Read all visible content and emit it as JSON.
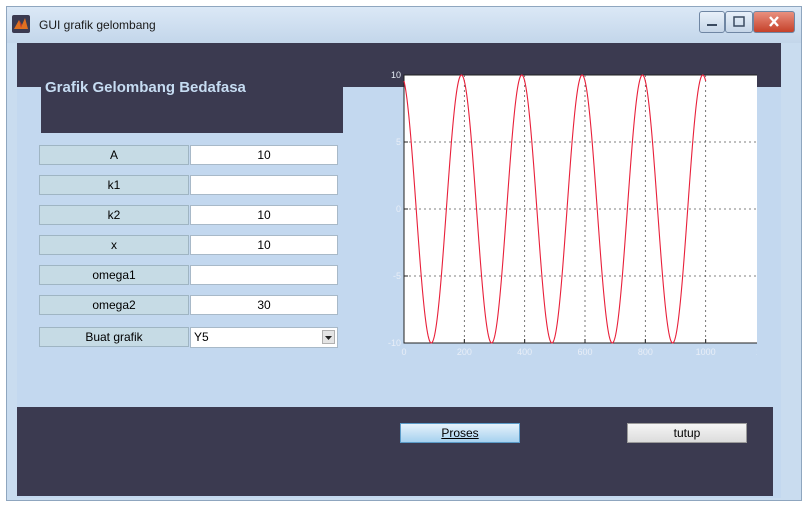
{
  "window": {
    "title": "GUI grafik gelombang",
    "accent_dark": "#3b3a50",
    "background": "#c3d8ef"
  },
  "panel": {
    "heading": "Grafik Gelombang Bedafasa"
  },
  "fields": [
    {
      "label": "A",
      "value": "10"
    },
    {
      "label": "k1",
      "value": ""
    },
    {
      "label": "k2",
      "value": "10"
    },
    {
      "label": "x",
      "value": "10"
    },
    {
      "label": "omega1",
      "value": ""
    },
    {
      "label": "omega2",
      "value": "30"
    }
  ],
  "buat_grafik": {
    "label": "Buat grafik",
    "selected": "Y5"
  },
  "buttons": {
    "proses": "Proses",
    "tutup": "tutup"
  },
  "chart_data": {
    "type": "line",
    "title": "",
    "xlabel": "",
    "ylabel": "",
    "xlim": [
      0,
      1200
    ],
    "ylim": [
      -10,
      10
    ],
    "x_ticks": [
      "0",
      "200",
      "400",
      "600",
      "800",
      "1000",
      "1200"
    ],
    "y_ticks": [
      "10",
      "5",
      "0",
      "-5",
      "-10"
    ],
    "grid": true,
    "series": [
      {
        "color": "#e8203a",
        "function": "10*cos(2*pi*x/200 + 0.3)",
        "x_range": [
          0,
          1000
        ],
        "amplitude": 10,
        "period": 200,
        "phase": 0.3
      }
    ]
  }
}
